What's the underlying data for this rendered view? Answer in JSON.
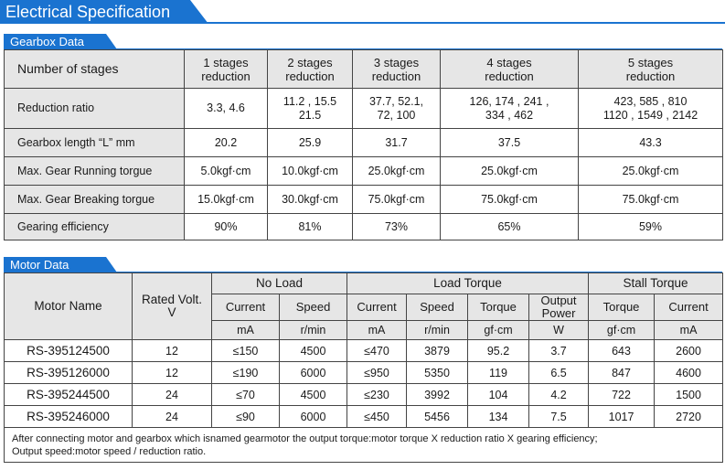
{
  "header": {
    "title": "Electrical Specification"
  },
  "gearbox": {
    "section_title": "Gearbox Data",
    "columns": [
      [
        "1 stages",
        "reduction"
      ],
      [
        "2 stages",
        "reduction"
      ],
      [
        "3 stages",
        "reduction"
      ],
      [
        "4 stages",
        "reduction"
      ],
      [
        "5 stages",
        "reduction"
      ]
    ],
    "first_header": "Number of stages",
    "rows": [
      {
        "label": "Reduction ratio",
        "cells": [
          [
            "3.3, 4.6"
          ],
          [
            "11.2 , 15.5",
            "21.5"
          ],
          [
            "37.7,  52.1,",
            "72,  100"
          ],
          [
            "126,  174 ,  241 ,",
            "334 ,  462"
          ],
          [
            "423,  585 ,  810",
            "1120 ,  1549 ,  2142"
          ]
        ]
      },
      {
        "label": "Gearbox length “L” mm",
        "cells": [
          [
            "20.2"
          ],
          [
            "25.9"
          ],
          [
            "31.7"
          ],
          [
            "37.5"
          ],
          [
            "43.3"
          ]
        ]
      },
      {
        "label": "Max. Gear Running torgue",
        "cells": [
          [
            "5.0kgf·cm"
          ],
          [
            "10.0kgf·cm"
          ],
          [
            "25.0kgf·cm"
          ],
          [
            "25.0kgf·cm"
          ],
          [
            "25.0kgf·cm"
          ]
        ]
      },
      {
        "label": "Max. Gear Breaking torgue",
        "cells": [
          [
            "15.0kgf·cm"
          ],
          [
            "30.0kgf·cm"
          ],
          [
            "75.0kgf·cm"
          ],
          [
            "75.0kgf·cm"
          ],
          [
            "75.0kgf·cm"
          ]
        ]
      },
      {
        "label": "Gearing efficiency",
        "cells": [
          [
            "90%"
          ],
          [
            "81%"
          ],
          [
            "73%"
          ],
          [
            "65%"
          ],
          [
            "59%"
          ]
        ]
      }
    ]
  },
  "motor": {
    "section_title": "Motor Data",
    "motor_name_header": "Motor Name",
    "rated_volt_header": [
      "Rated Volt.",
      "V"
    ],
    "groups": {
      "no_load": "No Load",
      "load_torque": "Load Torque",
      "stall_torque": "Stall Torque"
    },
    "sub_headers": [
      "Current",
      "Speed",
      "Current",
      "Speed",
      "Torque",
      [
        "Output",
        "Power"
      ],
      "Torque",
      "Current"
    ],
    "units": [
      "mA",
      "r/min",
      "mA",
      "r/min",
      "gf·cm",
      "W",
      "gf·cm",
      "mA"
    ],
    "rows": [
      {
        "name": "RS-395124500",
        "volt": "12",
        "values": [
          "≤150",
          "4500",
          "≤470",
          "3879",
          "95.2",
          "3.7",
          "643",
          "2600"
        ]
      },
      {
        "name": "RS-395126000",
        "volt": "12",
        "values": [
          "≤190",
          "6000",
          "≤950",
          "5350",
          "119",
          "6.5",
          "847",
          "4600"
        ]
      },
      {
        "name": "RS-395244500",
        "volt": "24",
        "values": [
          "≤70",
          "4500",
          "≤230",
          "3992",
          "104",
          "4.2",
          "722",
          "1500"
        ]
      },
      {
        "name": "RS-395246000",
        "volt": "24",
        "values": [
          "≤90",
          "6000",
          "≤450",
          "5456",
          "134",
          "7.5",
          "1017",
          "2720"
        ]
      }
    ],
    "note": [
      "After connecting motor and gearbox which isnamed gearmotor the output torque:motor torque X reduction ratio X gearing efficiency;",
      "Output speed:motor speed / reduction ratio."
    ]
  },
  "colors": {
    "accent": "#1a73d0",
    "header_shade": "#e6e6e6",
    "border": "#444444"
  }
}
